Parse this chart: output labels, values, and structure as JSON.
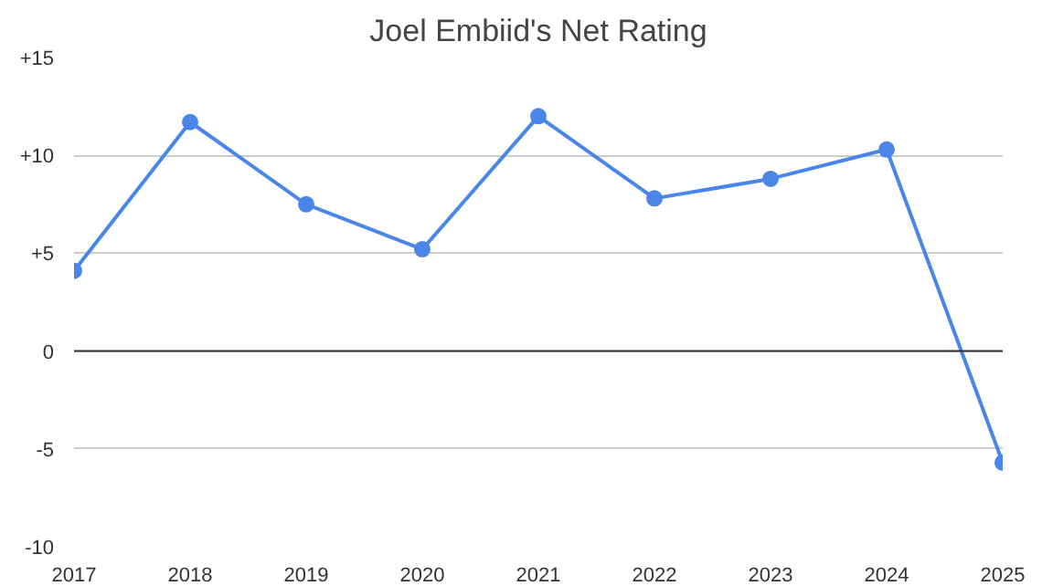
{
  "chart_data": {
    "type": "line",
    "title": "Joel Embiid's Net Rating",
    "x": [
      2017,
      2018,
      2019,
      2020,
      2021,
      2022,
      2023,
      2024,
      2025
    ],
    "series": [
      {
        "color": "#4a86e8",
        "values": [
          4.1,
          11.7,
          7.5,
          5.2,
          12.0,
          7.8,
          8.8,
          10.3,
          -5.7
        ]
      }
    ],
    "xlim": [
      2017,
      2025
    ],
    "xticks": [
      2017,
      2018,
      2019,
      2020,
      2021,
      2022,
      2023,
      2024,
      2025
    ],
    "ylim": [
      -10,
      15
    ],
    "yticks": [
      {
        "value": -10,
        "label": "-10"
      },
      {
        "value": -5,
        "label": "-5"
      },
      0,
      {
        "value": 5,
        "label": "+5"
      },
      {
        "value": 10,
        "label": "+10"
      },
      {
        "value": 15,
        "label": "+15"
      }
    ],
    "ref_lines": [
      {
        "axis": "y",
        "value": 0,
        "color": "#333333"
      }
    ],
    "grid": "y",
    "marker": "circle",
    "line_style": "solid"
  }
}
